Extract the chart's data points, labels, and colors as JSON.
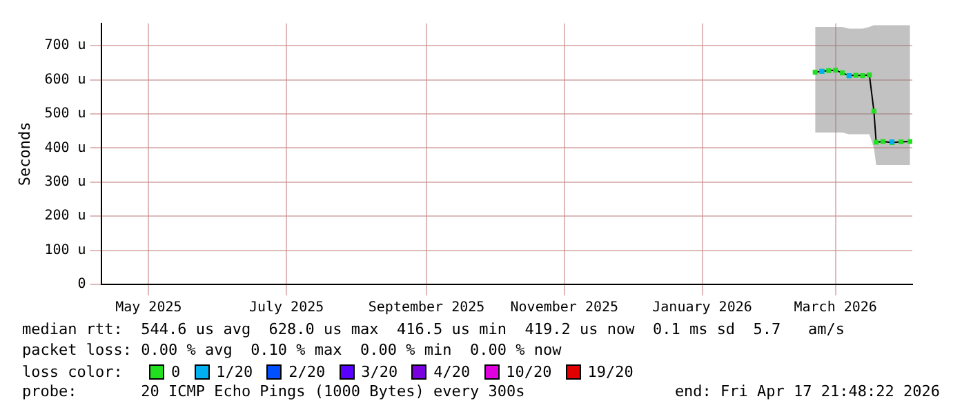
{
  "chart_data": {
    "type": "line",
    "ylabel": "Seconds",
    "legend_title": "loss color:",
    "legend": "bottom",
    "grid": true,
    "marker": "square",
    "x": [
      "2026-02-20",
      "2026-02-23",
      "2026-02-26",
      "2026-03-01",
      "2026-03-04",
      "2026-03-07",
      "2026-03-10",
      "2026-03-13",
      "2026-03-16",
      "2026-03-18",
      "2026-03-19",
      "2026-03-22",
      "2026-03-26",
      "2026-03-30",
      "2026-04-03"
    ],
    "series": [
      {
        "name": "0",
        "color": "#20e020",
        "values": [
          622,
          625,
          627,
          628,
          620,
          612,
          613,
          612,
          614,
          508,
          417,
          419,
          416,
          418,
          419
        ],
        "lower": [
          445,
          445,
          445,
          445,
          445,
          440,
          440,
          440,
          440,
          400,
          350,
          350,
          350,
          350,
          350
        ],
        "upper": [
          755,
          755,
          755,
          755,
          755,
          750,
          750,
          750,
          755,
          760,
          760,
          760,
          760,
          760,
          760
        ]
      },
      {
        "name": "1/20",
        "type": "scatter",
        "color": "#00b0f0",
        "values": [
          null,
          625,
          null,
          null,
          null,
          612,
          null,
          null,
          null,
          null,
          null,
          null,
          418,
          null,
          null
        ]
      },
      {
        "name": "2/20",
        "type": "scatter",
        "color": "#0050ff",
        "values": [
          null,
          null,
          null,
          null,
          null,
          null,
          null,
          null,
          null,
          null,
          null,
          null,
          null,
          null,
          null
        ]
      },
      {
        "name": "3/20",
        "type": "scatter",
        "color": "#5a00ff",
        "values": [
          null,
          null,
          null,
          null,
          null,
          null,
          null,
          null,
          null,
          null,
          null,
          null,
          null,
          null,
          null
        ]
      },
      {
        "name": "4/20",
        "type": "scatter",
        "color": "#7a00e0",
        "values": [
          null,
          null,
          null,
          null,
          null,
          null,
          null,
          null,
          null,
          null,
          null,
          null,
          null,
          null,
          null
        ]
      },
      {
        "name": "10/20",
        "type": "scatter",
        "color": "#e000e0",
        "values": [
          null,
          null,
          null,
          null,
          null,
          null,
          null,
          null,
          null,
          null,
          null,
          null,
          null,
          null,
          null
        ]
      },
      {
        "name": "19/20",
        "type": "scatter",
        "color": "#e00000",
        "values": [
          null,
          null,
          null,
          null,
          null,
          null,
          null,
          null,
          null,
          null,
          null,
          null,
          null,
          null,
          null
        ]
      }
    ],
    "xlim": [
      "2025-04-10",
      "2026-04-04"
    ],
    "xticks": [
      {
        "value": "2025-05-01",
        "label": "May 2025"
      },
      {
        "value": "2025-07-01",
        "label": "July 2025"
      },
      {
        "value": "2025-09-01",
        "label": "September 2025"
      },
      {
        "value": "2025-11-01",
        "label": "November 2025"
      },
      {
        "value": "2026-01-01",
        "label": "January 2026"
      },
      {
        "value": "2026-03-01",
        "label": "March 2026"
      }
    ],
    "ylim": [
      0,
      765
    ],
    "yticks": [
      {
        "value": 0,
        "label": "0"
      },
      {
        "value": 100,
        "label": "100 u"
      },
      {
        "value": 200,
        "label": "200 u"
      },
      {
        "value": 300,
        "label": "300 u"
      },
      {
        "value": 400,
        "label": "400 u"
      },
      {
        "value": 500,
        "label": "500 u"
      },
      {
        "value": 600,
        "label": "600 u"
      },
      {
        "value": 700,
        "label": "700 u"
      }
    ],
    "annotations": [
      "median rtt:  544.6 us avg  628.0 us max  416.5 us min  419.2 us now  0.1 ms sd  5.7   am/s",
      "packet loss: 0.00 % avg  0.10 % max  0.00 % min  0.00 % now",
      "probe:       20 ICMP Echo Pings (1000 Bytes) every 300s",
      "end: Fri Apr 17 21:48:22 2026"
    ]
  }
}
